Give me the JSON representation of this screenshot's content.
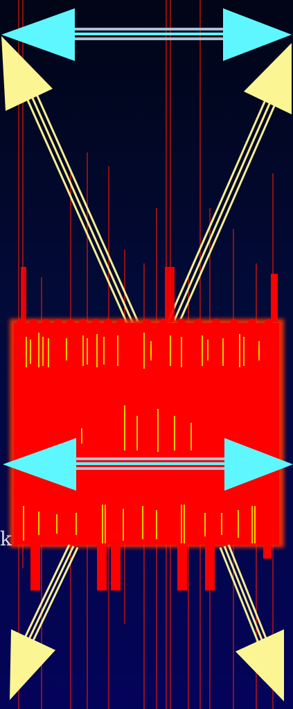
{
  "stray_text": "k",
  "colors": {
    "background_top": "#010516",
    "background_bottom": "#04035a",
    "cyan_arrow": "#5ff7ff",
    "cyan_shaft": "#a8c0d8",
    "yellow_arrow": "#fbf693",
    "yellow_shaft": "#f6ee8f",
    "red_block": "#ff0000",
    "red_glow": "#ff3300",
    "yellow_dashes": "#ffff00"
  },
  "icons": [
    "double-headed-arrow-icon",
    "diagonal-arrow-icon"
  ]
}
